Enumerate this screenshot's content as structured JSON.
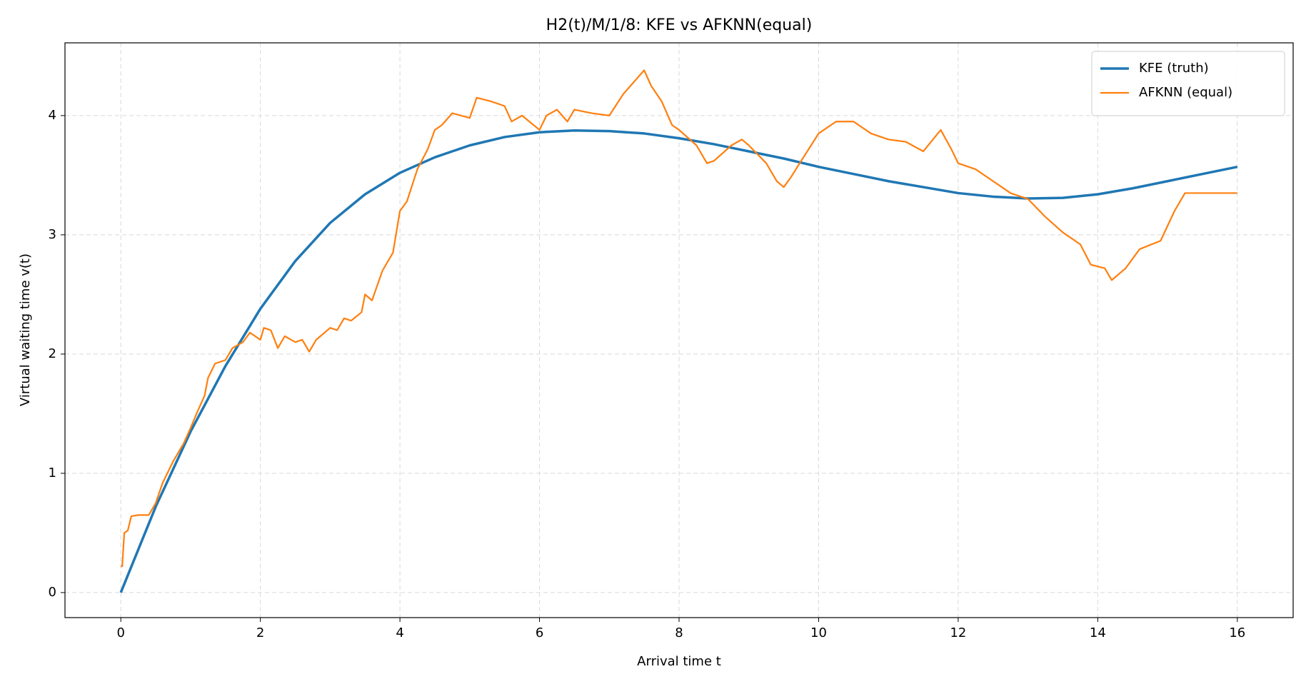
{
  "chart_data": {
    "type": "line",
    "title": "H2(t)/M/1/8: KFE vs AFKNN(equal)",
    "xlabel": "Arrival time t",
    "ylabel": "Virtual waiting time v(t)",
    "xlim": [
      -0.8,
      16.8
    ],
    "ylim": [
      -0.21,
      4.61
    ],
    "xticks": [
      0,
      2,
      4,
      6,
      8,
      10,
      12,
      14,
      16
    ],
    "yticks": [
      0,
      1,
      2,
      3,
      4
    ],
    "grid": true,
    "legend": "upper right",
    "series": [
      {
        "name": "KFE (truth)",
        "color": "#1f77b4",
        "width": 3.5,
        "x": [
          0,
          0.5,
          1,
          1.5,
          2,
          2.5,
          3,
          3.5,
          4,
          4.5,
          5,
          5.5,
          6,
          6.5,
          7,
          7.5,
          8,
          8.5,
          9,
          9.5,
          10,
          10.5,
          11,
          11.5,
          12,
          12.5,
          13,
          13.5,
          14,
          14.5,
          15,
          15.5,
          16
        ],
        "values": [
          0,
          0.72,
          1.35,
          1.9,
          2.38,
          2.78,
          3.1,
          3.34,
          3.52,
          3.65,
          3.75,
          3.82,
          3.86,
          3.875,
          3.87,
          3.85,
          3.81,
          3.76,
          3.7,
          3.64,
          3.57,
          3.51,
          3.45,
          3.4,
          3.35,
          3.32,
          3.305,
          3.31,
          3.34,
          3.39,
          3.45,
          3.51,
          3.57
        ]
      },
      {
        "name": "AFKNN (equal)",
        "color": "#ff7f0e",
        "width": 2.2,
        "x": [
          0,
          0.02,
          0.05,
          0.1,
          0.15,
          0.25,
          0.4,
          0.5,
          0.6,
          0.75,
          0.9,
          1.0,
          1.1,
          1.2,
          1.25,
          1.35,
          1.5,
          1.6,
          1.75,
          1.85,
          2.0,
          2.05,
          2.15,
          2.25,
          2.35,
          2.5,
          2.6,
          2.7,
          2.8,
          3.0,
          3.1,
          3.2,
          3.3,
          3.45,
          3.5,
          3.6,
          3.75,
          3.9,
          4.0,
          4.1,
          4.25,
          4.4,
          4.5,
          4.6,
          4.75,
          5.0,
          5.1,
          5.3,
          5.5,
          5.6,
          5.75,
          6.0,
          6.1,
          6.25,
          6.4,
          6.5,
          6.75,
          7.0,
          7.2,
          7.35,
          7.5,
          7.6,
          7.75,
          7.9,
          8.0,
          8.25,
          8.4,
          8.5,
          8.75,
          8.9,
          9.0,
          9.25,
          9.4,
          9.5,
          9.6,
          9.75,
          10.0,
          10.25,
          10.5,
          10.75,
          11.0,
          11.25,
          11.5,
          11.75,
          11.9,
          12.0,
          12.25,
          12.5,
          12.75,
          13.0,
          13.25,
          13.5,
          13.75,
          13.9,
          14.1,
          14.2,
          14.4,
          14.6,
          14.9,
          15.1,
          15.25,
          15.35,
          16.0
        ],
        "values": [
          0.22,
          0.22,
          0.5,
          0.52,
          0.64,
          0.65,
          0.65,
          0.75,
          0.92,
          1.1,
          1.25,
          1.38,
          1.52,
          1.65,
          1.8,
          1.92,
          1.95,
          2.05,
          2.1,
          2.18,
          2.12,
          2.22,
          2.2,
          2.05,
          2.15,
          2.1,
          2.12,
          2.02,
          2.12,
          2.22,
          2.2,
          2.3,
          2.28,
          2.35,
          2.5,
          2.45,
          2.7,
          2.85,
          3.2,
          3.28,
          3.55,
          3.72,
          3.88,
          3.92,
          4.02,
          3.98,
          4.15,
          4.12,
          4.08,
          3.95,
          4.0,
          3.88,
          4.0,
          4.05,
          3.95,
          4.05,
          4.02,
          4.0,
          4.18,
          4.28,
          4.38,
          4.25,
          4.12,
          3.92,
          3.88,
          3.75,
          3.6,
          3.62,
          3.75,
          3.8,
          3.75,
          3.6,
          3.45,
          3.4,
          3.48,
          3.62,
          3.85,
          3.95,
          3.95,
          3.85,
          3.8,
          3.78,
          3.7,
          3.88,
          3.72,
          3.6,
          3.55,
          3.45,
          3.35,
          3.3,
          3.15,
          3.02,
          2.92,
          2.75,
          2.72,
          2.62,
          2.72,
          2.88,
          2.95,
          3.2,
          3.35,
          3.35,
          3.35
        ]
      }
    ]
  }
}
